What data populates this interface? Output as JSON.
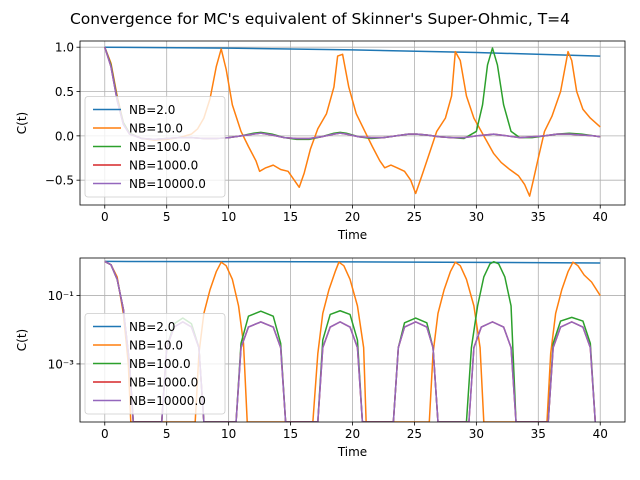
{
  "figure": {
    "suptitle": "Convergence for MC's equivalent of Skinner's Super-Ohmic, T=4"
  },
  "chart_data": [
    {
      "type": "line",
      "xlabel": "Time",
      "ylabel": "C(t)",
      "xlim": [
        -2,
        42
      ],
      "ylim": [
        -0.78,
        1.07
      ],
      "yscale": "linear",
      "xticks": [
        0,
        5,
        10,
        15,
        20,
        25,
        30,
        35,
        40
      ],
      "yticks": [
        -0.5,
        0.0,
        0.5,
        1.0
      ],
      "ytick_labels": [
        "−0.5",
        "0.0",
        "0.5",
        "1.0"
      ],
      "grid": true,
      "legend": "left",
      "series": [
        {
          "name": "NB=2.0",
          "color": "#1f77b4",
          "x": [
            0,
            10,
            20,
            30,
            40
          ],
          "y": [
            1.0,
            0.99,
            0.97,
            0.94,
            0.9
          ]
        },
        {
          "name": "NB=10.0",
          "color": "#ff7f0e",
          "x": [
            0,
            0.5,
            1,
            1.5,
            2,
            3,
            4,
            5,
            6,
            7,
            7.5,
            8,
            8.5,
            9,
            9.4,
            9.8,
            10.3,
            11,
            11.6,
            12.2,
            12.5,
            13,
            13.6,
            14.2,
            14.8,
            15.3,
            15.7,
            16.1,
            16.6,
            17.2,
            17.9,
            18.5,
            18.8,
            19.2,
            19.7,
            20.3,
            21,
            21.6,
            22.2,
            22.6,
            23.1,
            23.6,
            24.2,
            24.7,
            25.1,
            25.6,
            26.2,
            26.8,
            27.5,
            28,
            28.3,
            28.7,
            29.2,
            29.8,
            30.6,
            31.4,
            32,
            32.7,
            33.4,
            33.9,
            34.3,
            34.6,
            35,
            35.5,
            36.1,
            36.8,
            37.4,
            37.7,
            38.1,
            38.6,
            39.2,
            40
          ],
          "y": [
            1.0,
            0.82,
            0.45,
            0.15,
            0.03,
            -0.03,
            -0.05,
            -0.04,
            -0.02,
            0.02,
            0.08,
            0.2,
            0.42,
            0.78,
            0.98,
            0.75,
            0.35,
            0.05,
            -0.12,
            -0.28,
            -0.4,
            -0.36,
            -0.33,
            -0.38,
            -0.4,
            -0.5,
            -0.58,
            -0.42,
            -0.15,
            0.08,
            0.25,
            0.55,
            0.9,
            0.92,
            0.55,
            0.25,
            0.05,
            -0.12,
            -0.28,
            -0.36,
            -0.33,
            -0.36,
            -0.4,
            -0.5,
            -0.65,
            -0.45,
            -0.2,
            0.05,
            0.2,
            0.45,
            0.95,
            0.85,
            0.45,
            0.2,
            0.0,
            -0.2,
            -0.3,
            -0.38,
            -0.45,
            -0.55,
            -0.68,
            -0.5,
            -0.25,
            0.05,
            0.22,
            0.5,
            0.95,
            0.85,
            0.5,
            0.3,
            0.2,
            0.1
          ]
        },
        {
          "name": "NB=100.0",
          "color": "#2ca02c",
          "x": [
            0,
            0.5,
            1,
            1.5,
            2,
            3,
            4,
            5,
            6,
            7,
            8,
            9,
            10,
            11,
            12,
            12.6,
            13.5,
            14.5,
            15.5,
            16.5,
            17.5,
            18.5,
            19,
            19.5,
            20.5,
            21.5,
            22.5,
            23.5,
            24.5,
            25.2,
            26,
            27,
            28,
            29,
            30,
            30.5,
            30.9,
            31.3,
            31.7,
            32.2,
            32.8,
            33.5,
            34.5,
            35.5,
            36.5,
            37.5,
            38.5,
            39.5,
            40
          ],
          "y": [
            1.0,
            0.8,
            0.42,
            0.15,
            0.03,
            -0.03,
            -0.04,
            -0.03,
            -0.02,
            -0.02,
            -0.03,
            -0.03,
            -0.02,
            0.0,
            0.03,
            0.04,
            0.02,
            -0.02,
            -0.04,
            -0.04,
            -0.01,
            0.03,
            0.04,
            0.03,
            -0.01,
            -0.03,
            -0.02,
            0.0,
            0.02,
            0.02,
            0.01,
            -0.01,
            -0.02,
            -0.03,
            0.05,
            0.35,
            0.8,
            0.99,
            0.8,
            0.35,
            0.05,
            -0.02,
            -0.02,
            0.0,
            0.02,
            0.03,
            0.02,
            0.0,
            -0.01
          ]
        },
        {
          "name": "NB=1000.0",
          "color": "#d62728",
          "x": [
            0,
            0.5,
            1,
            1.5,
            2,
            3,
            4,
            5,
            6,
            7,
            8,
            9,
            10,
            11,
            12,
            12.6,
            13.5,
            14.5,
            15.5,
            16.5,
            17.5,
            18.5,
            19,
            19.5,
            20.5,
            21.5,
            22.5,
            23.5,
            24.5,
            25.2,
            26,
            27,
            28,
            29,
            30,
            31.4,
            32.5,
            33.5,
            34.5,
            35.5,
            36.5,
            37.5,
            38.5,
            39.5,
            40
          ],
          "y": [
            1.0,
            0.78,
            0.4,
            0.13,
            0.02,
            -0.03,
            -0.04,
            -0.03,
            -0.02,
            -0.02,
            -0.03,
            -0.03,
            -0.02,
            0.0,
            0.02,
            0.03,
            0.01,
            -0.02,
            -0.03,
            -0.03,
            -0.01,
            0.02,
            0.03,
            0.02,
            -0.01,
            -0.02,
            -0.02,
            0.0,
            0.02,
            0.02,
            0.01,
            -0.01,
            -0.02,
            -0.02,
            0.0,
            0.02,
            0.0,
            -0.02,
            -0.01,
            0.0,
            0.02,
            0.02,
            0.01,
            0.0,
            -0.01
          ]
        },
        {
          "name": "NB=10000.0",
          "color": "#9467bd",
          "x": [
            0,
            0.5,
            1,
            1.5,
            2,
            3,
            4,
            5,
            6,
            7,
            8,
            9,
            10,
            11,
            12,
            12.6,
            13.5,
            14.5,
            15.5,
            16.5,
            17.5,
            18.5,
            19,
            19.5,
            20.5,
            21.5,
            22.5,
            23.5,
            24.5,
            25.2,
            26,
            27,
            28,
            29,
            30,
            31.4,
            32.5,
            33.5,
            34.5,
            35.5,
            36.5,
            37.5,
            38.5,
            39.5,
            40
          ],
          "y": [
            1.0,
            0.78,
            0.4,
            0.13,
            0.02,
            -0.03,
            -0.04,
            -0.03,
            -0.02,
            -0.02,
            -0.03,
            -0.03,
            -0.02,
            0.0,
            0.02,
            0.03,
            0.01,
            -0.02,
            -0.03,
            -0.03,
            -0.01,
            0.02,
            0.03,
            0.02,
            -0.01,
            -0.02,
            -0.02,
            0.0,
            0.02,
            0.02,
            0.01,
            -0.01,
            -0.02,
            -0.02,
            0.0,
            0.02,
            0.0,
            -0.02,
            -0.01,
            0.0,
            0.02,
            0.02,
            0.01,
            0.0,
            -0.01
          ]
        }
      ]
    },
    {
      "type": "line",
      "xlabel": "Time",
      "ylabel": "C(t)",
      "xlim": [
        -2,
        42
      ],
      "ylim_log10": [
        -4.7,
        0.1
      ],
      "yscale": "log",
      "xticks": [
        0,
        5,
        10,
        15,
        20,
        25,
        30,
        35,
        40
      ],
      "yticks_log10": [
        -1,
        -3
      ],
      "ytick_labels": [
        "10⁻¹",
        "10⁻³"
      ],
      "grid": true,
      "legend": "left",
      "series": [
        {
          "name": "NB=2.0",
          "color": "#1f77b4",
          "x": [
            0,
            10,
            20,
            30,
            40
          ],
          "y": [
            1.0,
            0.99,
            0.97,
            0.94,
            0.9
          ]
        },
        {
          "name": "NB=10.0",
          "color": "#ff7f0e",
          "x": [
            0,
            0.5,
            1,
            1.5,
            1.9,
            2.1,
            7.3,
            7.6,
            8,
            8.5,
            9,
            9.4,
            9.8,
            10.3,
            10.8,
            11.2,
            11.5,
            16.8,
            17.2,
            17.6,
            18.1,
            18.6,
            18.9,
            19.3,
            19.8,
            20.4,
            20.9,
            21.1,
            26.2,
            26.5,
            26.9,
            27.4,
            27.9,
            28.3,
            28.7,
            29.2,
            29.8,
            30.3,
            30.6,
            35.7,
            36,
            36.4,
            36.9,
            37.4,
            37.8,
            38.2,
            38.7,
            39.3,
            40
          ],
          "y": [
            1.0,
            0.8,
            0.35,
            0.03,
            0.001,
            2e-05,
            2e-05,
            0.002,
            0.03,
            0.15,
            0.5,
            0.95,
            0.75,
            0.3,
            0.05,
            0.004,
            2e-05,
            2e-05,
            0.002,
            0.03,
            0.15,
            0.5,
            0.95,
            0.75,
            0.3,
            0.05,
            0.003,
            2e-05,
            2e-05,
            0.002,
            0.03,
            0.15,
            0.5,
            0.95,
            0.75,
            0.3,
            0.05,
            0.003,
            2e-05,
            2e-05,
            0.002,
            0.03,
            0.15,
            0.5,
            0.95,
            0.75,
            0.4,
            0.25,
            0.1
          ]
        },
        {
          "name": "NB=100.0",
          "color": "#2ca02c",
          "x": [
            0,
            0.5,
            1,
            1.5,
            2,
            2.3,
            4.6,
            5,
            5.6,
            6.3,
            7,
            7.6,
            8,
            10.6,
            11,
            11.6,
            12.6,
            13.6,
            14.2,
            14.6,
            17.2,
            17.6,
            18.2,
            19,
            19.8,
            20.4,
            20.8,
            23.3,
            23.7,
            24.2,
            25.1,
            26,
            26.5,
            26.9,
            29.2,
            29.6,
            30.1,
            30.6,
            31.1,
            31.4,
            31.8,
            32.3,
            32.8,
            33.2,
            35.8,
            36.2,
            36.8,
            37.7,
            38.6,
            39.2,
            39.6
          ],
          "y": [
            1.0,
            0.8,
            0.3,
            0.04,
            0.001,
            2e-05,
            2e-05,
            0.003,
            0.015,
            0.022,
            0.015,
            0.003,
            2e-05,
            2e-05,
            0.004,
            0.025,
            0.035,
            0.025,
            0.004,
            2e-05,
            2e-05,
            0.005,
            0.028,
            0.036,
            0.028,
            0.005,
            2e-05,
            2e-05,
            0.003,
            0.016,
            0.022,
            0.016,
            0.003,
            2e-05,
            2e-05,
            0.003,
            0.05,
            0.35,
            0.85,
            0.98,
            0.85,
            0.35,
            0.05,
            2e-05,
            2e-05,
            0.004,
            0.018,
            0.023,
            0.018,
            0.004,
            2e-05
          ]
        },
        {
          "name": "NB=1000.0",
          "color": "#d62728",
          "x": [
            0,
            0.5,
            1,
            1.5,
            2,
            2.3,
            4.6,
            5,
            5.6,
            6.3,
            7,
            7.6,
            8,
            10.6,
            11,
            11.6,
            12.6,
            13.6,
            14.2,
            14.6,
            17.2,
            17.6,
            18.2,
            19,
            19.8,
            20.4,
            20.8,
            23.3,
            23.7,
            24.2,
            25.1,
            26,
            26.5,
            26.9,
            29.4,
            29.8,
            30.4,
            31.3,
            32.2,
            32.8,
            33.2,
            35.8,
            36.2,
            36.8,
            37.7,
            38.6,
            39.2,
            39.6
          ],
          "y": [
            1.0,
            0.8,
            0.3,
            0.04,
            0.001,
            2e-05,
            2e-05,
            0.003,
            0.012,
            0.017,
            0.012,
            0.003,
            2e-05,
            2e-05,
            0.003,
            0.012,
            0.017,
            0.012,
            0.003,
            2e-05,
            2e-05,
            0.003,
            0.012,
            0.017,
            0.012,
            0.003,
            2e-05,
            2e-05,
            0.003,
            0.012,
            0.017,
            0.012,
            0.003,
            2e-05,
            2e-05,
            0.003,
            0.012,
            0.017,
            0.012,
            0.003,
            2e-05,
            2e-05,
            0.003,
            0.012,
            0.017,
            0.012,
            0.003,
            2e-05
          ]
        },
        {
          "name": "NB=10000.0",
          "color": "#9467bd",
          "x": [
            0,
            0.5,
            1,
            1.5,
            2,
            2.3,
            4.6,
            5,
            5.6,
            6.3,
            7,
            7.6,
            8,
            10.6,
            11,
            11.6,
            12.6,
            13.6,
            14.2,
            14.6,
            17.2,
            17.6,
            18.2,
            19,
            19.8,
            20.4,
            20.8,
            23.3,
            23.7,
            24.2,
            25.1,
            26,
            26.5,
            26.9,
            29.4,
            29.8,
            30.4,
            31.3,
            32.2,
            32.8,
            33.2,
            35.8,
            36.2,
            36.8,
            37.7,
            38.6,
            39.2,
            39.6
          ],
          "y": [
            1.0,
            0.8,
            0.3,
            0.04,
            0.001,
            2e-05,
            2e-05,
            0.003,
            0.012,
            0.017,
            0.012,
            0.003,
            2e-05,
            2e-05,
            0.003,
            0.012,
            0.017,
            0.012,
            0.003,
            2e-05,
            2e-05,
            0.003,
            0.012,
            0.017,
            0.012,
            0.003,
            2e-05,
            2e-05,
            0.003,
            0.012,
            0.017,
            0.012,
            0.003,
            2e-05,
            2e-05,
            0.003,
            0.012,
            0.017,
            0.012,
            0.003,
            2e-05,
            2e-05,
            0.003,
            0.012,
            0.017,
            0.012,
            0.003,
            2e-05
          ]
        }
      ]
    }
  ]
}
